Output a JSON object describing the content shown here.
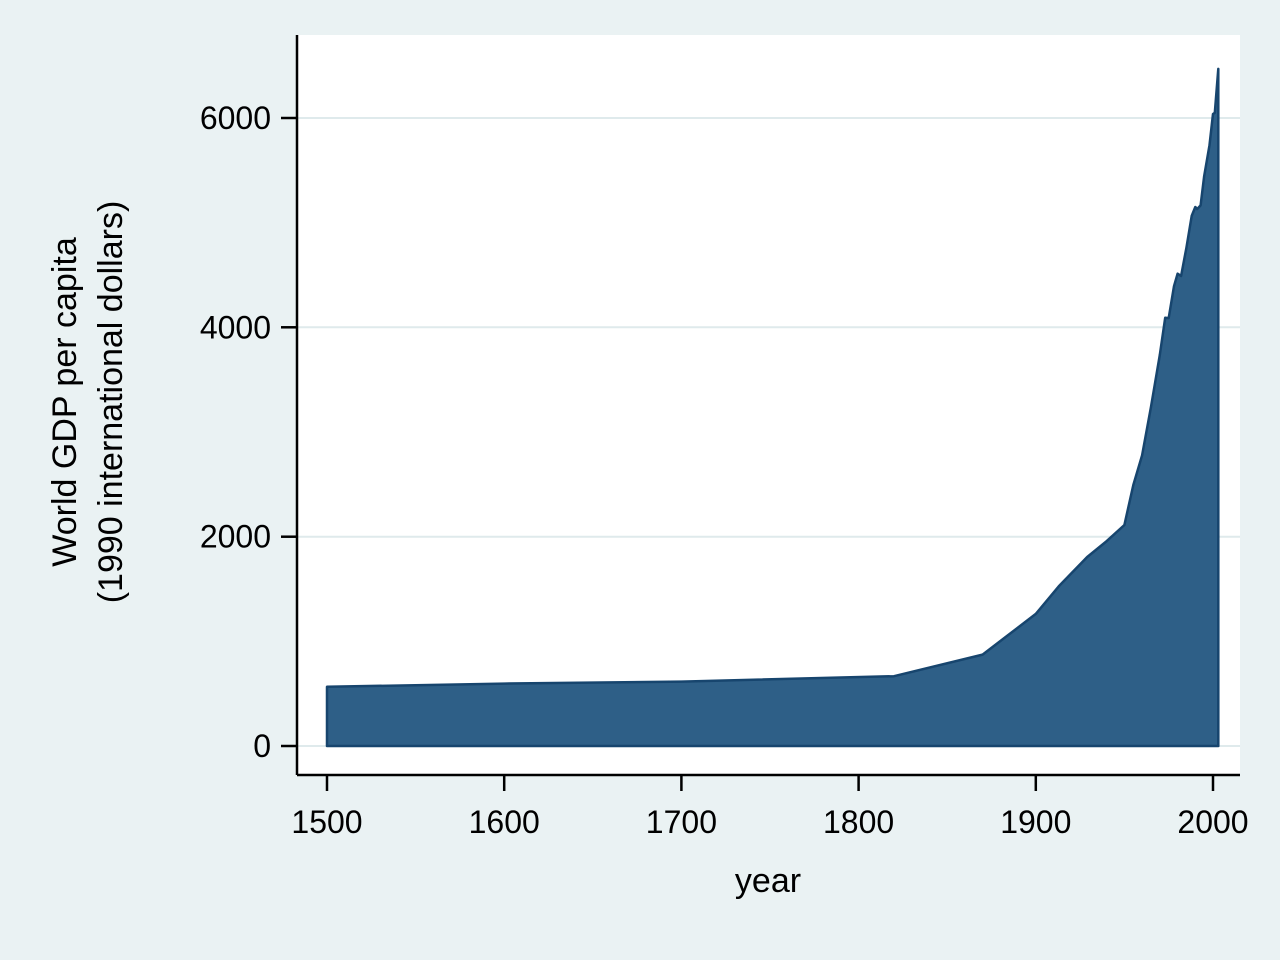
{
  "labels": {
    "ylabel_line1": "World GDP per capita",
    "ylabel_line2": "(1990 international dollars)",
    "xlabel": "year"
  },
  "style": {
    "page_background": "#eaf2f3",
    "plot_background": "#ffffff",
    "grid_color": "#dfeaec",
    "axis_color": "#000000",
    "text_color": "#000000",
    "area_fill": "#2e5f87",
    "area_stroke": "#17456e"
  },
  "chart_data": {
    "type": "area",
    "title": "",
    "xlabel": "year",
    "ylabel": "World GDP per capita (1990 international dollars)",
    "legend": "none",
    "grid": "horizontal gridlines at labeled y ticks",
    "x_ticks": [
      1500,
      1600,
      1700,
      1800,
      1900,
      2000
    ],
    "y_ticks": [
      0,
      2000,
      4000,
      6000
    ],
    "xlim": [
      1483,
      2015
    ],
    "ylim": [
      0,
      6500
    ],
    "series": [
      {
        "name": "World GDP per capita (1990 international dollars)",
        "x": [
          1500,
          1600,
          1700,
          1820,
          1870,
          1900,
          1913,
          1929,
          1940,
          1950,
          1955,
          1960,
          1965,
          1970,
          1973,
          1975,
          1978,
          1980,
          1982,
          1985,
          1988,
          1990,
          1991,
          1993,
          1995,
          1998,
          2000,
          2001,
          2003
        ],
        "y": [
          566,
          596,
          615,
          667,
          873,
          1262,
          1526,
          1806,
          1958,
          2111,
          2493,
          2777,
          3240,
          3736,
          4091,
          4088,
          4393,
          4512,
          4490,
          4760,
          5065,
          5150,
          5130,
          5165,
          5440,
          5740,
          6038,
          6050,
          6469
        ]
      }
    ]
  }
}
